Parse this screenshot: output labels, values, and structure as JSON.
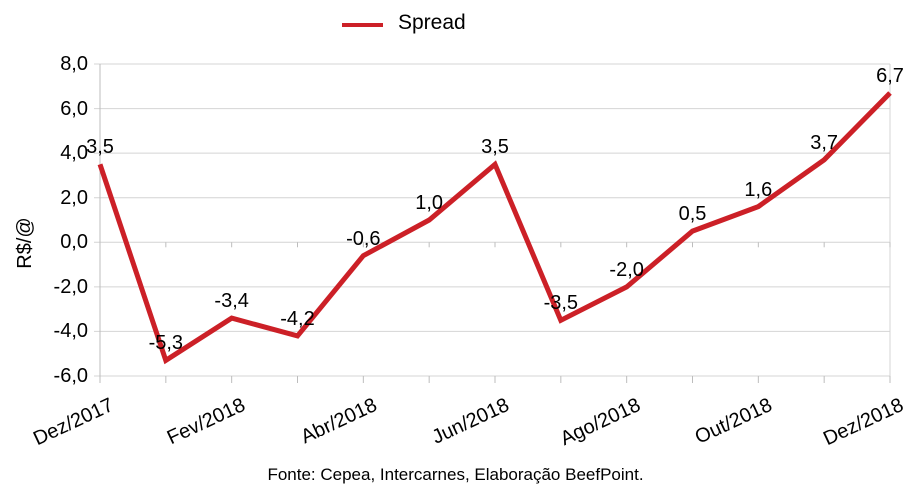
{
  "legend": {
    "label": "Spread"
  },
  "y_axis": {
    "title": "R$/@",
    "tick_labels": [
      "8,0",
      "6,0",
      "4,0",
      "2,0",
      "0,0",
      "-2,0",
      "-4,0",
      "-6,0"
    ]
  },
  "x_axis": {
    "tick_labels": [
      "Dez/2017",
      "Fev/2018",
      "Abr/2018",
      "Jun/2018",
      "Ago/2018",
      "Out/2018",
      "Dez/2018"
    ],
    "tick_count": 13,
    "labeled_every_nth_tick": 2
  },
  "footer": {
    "text": "Fonte: Cepea, Intercarnes, Elaboração BeefPoint."
  },
  "colors": {
    "line": "#cc2027",
    "gridline": "#d4d4d4",
    "axis": "#bdbdbd",
    "text": "#000000"
  },
  "chart_data": {
    "type": "line",
    "title": "",
    "ylabel": "R$/@",
    "xlabel": "",
    "ylim": [
      -6,
      8
    ],
    "y_step": 2,
    "grid": "horizontal",
    "legend_position": "top-center",
    "decimal_separator": ",",
    "n_points": 13,
    "x_tick_labels": [
      "Dez/2017",
      "Fev/2018",
      "Abr/2018",
      "Jun/2018",
      "Ago/2018",
      "Out/2018",
      "Dez/2018"
    ],
    "series": [
      {
        "name": "Spread",
        "color": "#cc2027",
        "values": [
          3.5,
          -5.3,
          -3.4,
          -4.2,
          -0.6,
          1.0,
          3.5,
          -3.5,
          -2.0,
          0.5,
          1.6,
          3.7,
          6.7
        ],
        "data_labels": [
          "3,5",
          "-5,3",
          "-3,4",
          "-4,2",
          "-0,6",
          "1,0",
          "3,5",
          "-3,5",
          "-2,0",
          "0,5",
          "1,6",
          "3,7",
          "6,7"
        ]
      }
    ]
  }
}
